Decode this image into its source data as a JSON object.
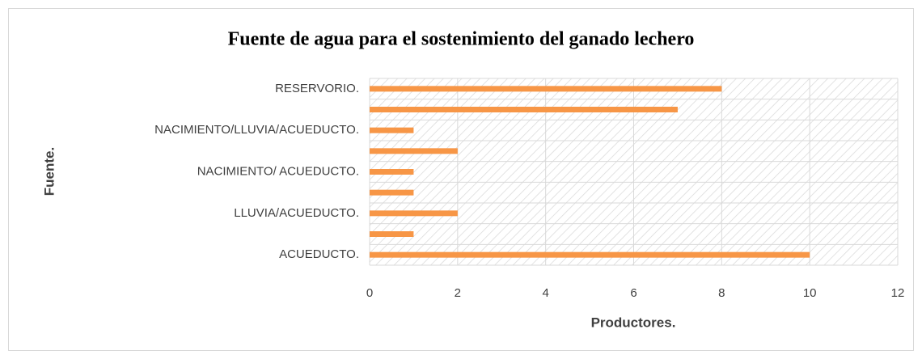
{
  "chart_data": {
    "type": "bar",
    "orientation": "horizontal",
    "title": "Fuente de agua para el sostenimiento del ganado lechero",
    "x_label": "Productores.",
    "y_label": "Fuente.",
    "categories": [
      "ACUEDUCTO.",
      null,
      "LLUVIA/ACUEDUCTO.",
      null,
      "NACIMIENTO/ ACUEDUCTO.",
      null,
      "NACIMIENTO/LLUVIA/ACUEDUCTO.",
      null,
      "RESERVORIO."
    ],
    "values": [
      10,
      1,
      2,
      1,
      1,
      2,
      1,
      7,
      8
    ],
    "color": "#f79646",
    "xlim": [
      0,
      12
    ],
    "xticks": [
      0,
      2,
      4,
      6,
      8,
      10,
      12
    ],
    "grid": true
  }
}
